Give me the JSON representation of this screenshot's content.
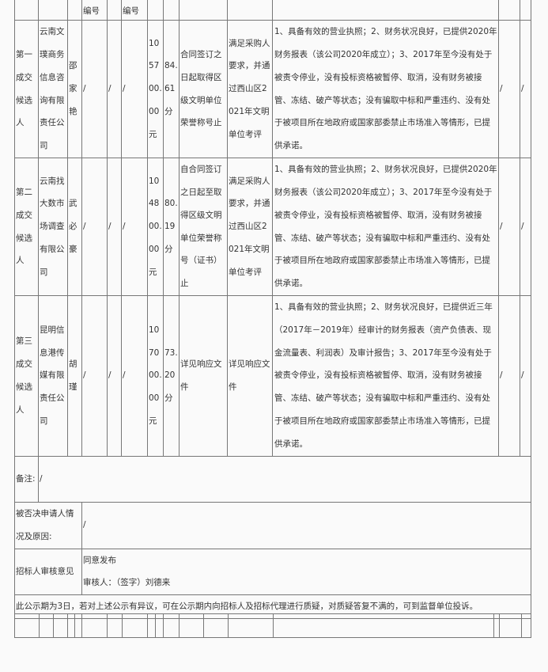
{
  "header": {
    "col4": "编号",
    "col6": "编号"
  },
  "candidates": [
    {
      "rank": "第一成交候选人",
      "company": "云南文璞商务信息咨询有限责任公司",
      "person": "邵家艳",
      "c4": "/",
      "c5": "/",
      "c6": "/",
      "amount": "1057 00.00元",
      "score": "84.61分",
      "honor": "合同签订之日起取得区级文明单位荣誉称号止",
      "eval": "满足采购人要求，并通过西山区2021年文明单位考评",
      "qualification": "1、具备有效的营业执照；2、财务状况良好，已提供2020年财务报表（该公司2020年成立）；3、2017年至今没有处于被责令停业，没有投标资格被暂停、取消，没有财务被接管、冻结、破产等状态；没有骗取中标和严重违约、没有处于被项目所在地政府或国家部委禁止市场准入等情形，已提供承诺。",
      "c12": "/",
      "c13": "/"
    },
    {
      "rank": "第二成交候选人",
      "company": "云南找大数市场调查有限公司",
      "person": "武必豪",
      "c4": "/",
      "c5": "/",
      "c6": "/",
      "amount": "1048 00.00元",
      "score": "80.19分",
      "honor": "自合同签订之日起至取得区级文明单位荣誉称号（证书）止",
      "eval": "满足采购人要求，并通过西山区2021年文明单位考评",
      "qualification": "1、具备有效的营业执照；2、财务状况良好，已提供2020年财务报表（该公司2020年成立）；3、2017年至今没有处于被责令停业，没有投标资格被暂停、取消，没有财务被接管、冻结、破产等状态；没有骗取中标和严重违约、没有处于被项目所在地政府或国家部委禁止市场准入等情形，已提供承诺。",
      "c12": "/",
      "c13": "/"
    },
    {
      "rank": "第三成交候选人",
      "company": "昆明信息港传媒有限责任公司",
      "person": "胡瑾",
      "c4": "/",
      "c5": "/",
      "c6": "/",
      "amount": "1070 00.00元",
      "score": "73.20分",
      "honor": "详见响应文件",
      "eval": "详见响应文件",
      "qualification": "1、具备有效的营业执照；2、财务状况良好，已提供近三年（2017年－2019年）经审计的财务报表（资产负债表、现金流量表、利润表）及审计报告；3、2017年至今没有处于被责令停业，没有投标资格被暂停、取消，没有财务被接管、冻结、破产等状态；没有骗取中标和严重违约、没有处于被项目所在地政府或国家部委禁止市场准入等情形，已提供承诺。",
      "c12": "/",
      "c13": "/"
    }
  ],
  "remark": {
    "label": "备注:",
    "value": "/"
  },
  "rejected": {
    "label": "被否决申请人情况及原因:",
    "value": "/"
  },
  "review": {
    "label": "招标人审核意见",
    "opinion": "同意发布",
    "signer": "审核人：（签字）刘德来"
  },
  "notice": "此公示期为3日，若对上述公示有异议，可在公示期内向招标人及招标代理进行质疑，对质疑答复不满的，可到监督单位投诉。"
}
